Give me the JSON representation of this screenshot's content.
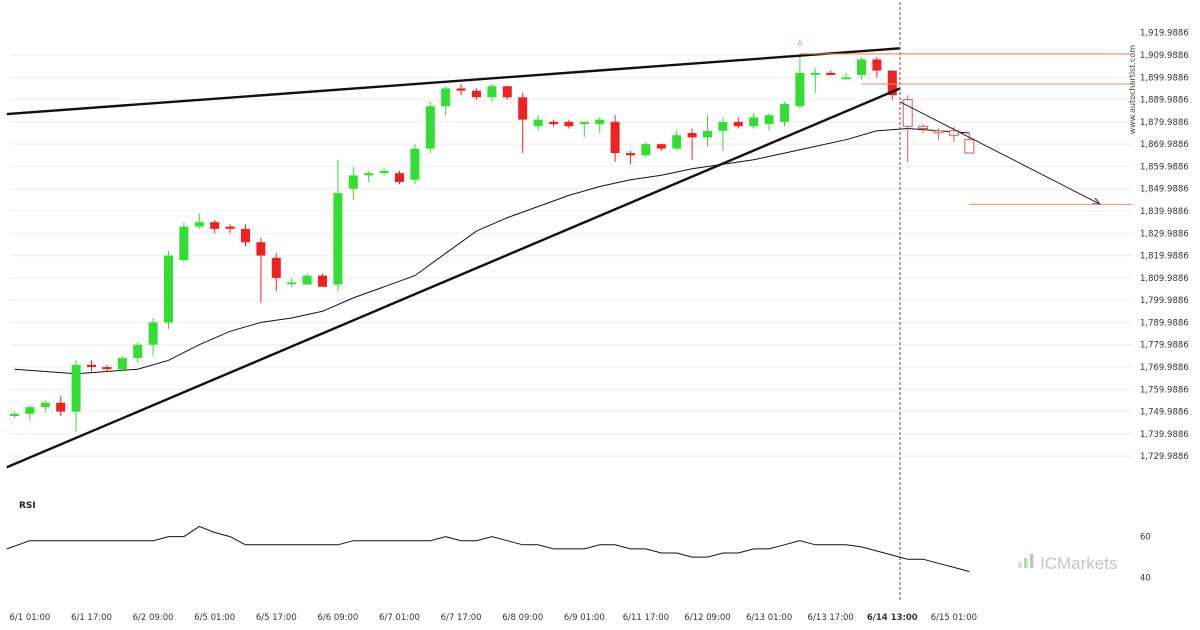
{
  "chart_data": {
    "type": "candlestick",
    "title": "",
    "watermark": "www.autochartist.com",
    "brand": "ICMarkets",
    "y_axis": {
      "side": "right",
      "range": [
        1721.9886,
        1931.9886
      ],
      "ticks": [
        "1,909.9886",
        "1,899.9886",
        "1,889.9886",
        "1,879.9886",
        "1,869.9886",
        "1,859.9886",
        "1,849.9886",
        "1,839.9886",
        "1,829.9886",
        "1,819.9886",
        "1,809.9886",
        "1,799.9886",
        "1,789.9886",
        "1,779.9886",
        "1,769.9886",
        "1,759.9886",
        "1,749.9886",
        "1,739.9886",
        "1,729.9886"
      ],
      "tick_values": [
        1909.9886,
        1899.9886,
        1889.9886,
        1879.9886,
        1869.9886,
        1859.9886,
        1849.9886,
        1839.9886,
        1829.9886,
        1819.9886,
        1809.9886,
        1799.9886,
        1789.9886,
        1779.9886,
        1769.9886,
        1759.9886,
        1749.9886,
        1739.9886,
        1729.9886
      ],
      "top_label": "1,919.9886"
    },
    "x_axis": {
      "labels": [
        {
          "label": "6/1 01:00",
          "index": 1
        },
        {
          "label": "6/1 17:00",
          "index": 5
        },
        {
          "label": "6/2 09:00",
          "index": 9
        },
        {
          "label": "6/5 01:00",
          "index": 13
        },
        {
          "label": "6/5 17:00",
          "index": 17
        },
        {
          "label": "6/6 09:00",
          "index": 21
        },
        {
          "label": "6/7 01:00",
          "index": 25
        },
        {
          "label": "6/7 17:00",
          "index": 29
        },
        {
          "label": "6/8 09:00",
          "index": 33
        },
        {
          "label": "6/9 01:00",
          "index": 37
        },
        {
          "label": "6/11 17:00",
          "index": 41
        },
        {
          "label": "6/12 09:00",
          "index": 45
        },
        {
          "label": "6/13 01:00",
          "index": 49
        },
        {
          "label": "6/13 17:00",
          "index": 53
        },
        {
          "label": "6/14 13:00",
          "index": 57,
          "bold": true
        },
        {
          "label": "6/15 01:00",
          "index": 61
        }
      ]
    },
    "candles": [
      {
        "o": 1748.0,
        "h": 1750.0,
        "l": 1747.0,
        "c": 1749.0
      },
      {
        "o": 1749.0,
        "h": 1753.0,
        "l": 1746.0,
        "c": 1752.0
      },
      {
        "o": 1752.0,
        "h": 1755.0,
        "l": 1750.0,
        "c": 1754.0
      },
      {
        "o": 1754.0,
        "h": 1757.0,
        "l": 1748.0,
        "c": 1750.0
      },
      {
        "o": 1750.0,
        "h": 1773.0,
        "l": 1741.0,
        "c": 1771.0
      },
      {
        "o": 1771.0,
        "h": 1773.0,
        "l": 1768.0,
        "c": 1770.0
      },
      {
        "o": 1770.0,
        "h": 1771.0,
        "l": 1768.0,
        "c": 1769.0
      },
      {
        "o": 1769.0,
        "h": 1775.0,
        "l": 1768.0,
        "c": 1774.0
      },
      {
        "o": 1774.0,
        "h": 1781.0,
        "l": 1772.0,
        "c": 1780.0
      },
      {
        "o": 1780.0,
        "h": 1792.0,
        "l": 1775.0,
        "c": 1790.0
      },
      {
        "o": 1790.0,
        "h": 1822.0,
        "l": 1787.0,
        "c": 1820.0
      },
      {
        "o": 1818.0,
        "h": 1835.0,
        "l": 1817.0,
        "c": 1833.0
      },
      {
        "o": 1833.0,
        "h": 1839.0,
        "l": 1832.0,
        "c": 1835.0
      },
      {
        "o": 1835.0,
        "h": 1836.0,
        "l": 1830.0,
        "c": 1832.0
      },
      {
        "o": 1833.0,
        "h": 1834.0,
        "l": 1830.0,
        "c": 1832.0
      },
      {
        "o": 1832.0,
        "h": 1834.0,
        "l": 1824.0,
        "c": 1826.0
      },
      {
        "o": 1826.0,
        "h": 1828.0,
        "l": 1799.0,
        "c": 1820.0
      },
      {
        "o": 1819.0,
        "h": 1821.0,
        "l": 1804.0,
        "c": 1810.0
      },
      {
        "o": 1808.0,
        "h": 1810.0,
        "l": 1806.0,
        "c": 1808.0
      },
      {
        "o": 1807.0,
        "h": 1812.0,
        "l": 1807.0,
        "c": 1811.0
      },
      {
        "o": 1811.0,
        "h": 1812.0,
        "l": 1806.0,
        "c": 1806.0
      },
      {
        "o": 1807.0,
        "h": 1863.0,
        "l": 1804.0,
        "c": 1848.0
      },
      {
        "o": 1850.0,
        "h": 1860.0,
        "l": 1845.0,
        "c": 1856.0
      },
      {
        "o": 1856.0,
        "h": 1858.0,
        "l": 1853.0,
        "c": 1857.0
      },
      {
        "o": 1857.0,
        "h": 1859.0,
        "l": 1856.0,
        "c": 1858.0
      },
      {
        "o": 1857.0,
        "h": 1858.0,
        "l": 1852.0,
        "c": 1853.0
      },
      {
        "o": 1854.0,
        "h": 1870.0,
        "l": 1852.0,
        "c": 1868.0
      },
      {
        "o": 1868.0,
        "h": 1889.0,
        "l": 1866.0,
        "c": 1887.0
      },
      {
        "o": 1887.0,
        "h": 1896.0,
        "l": 1883.0,
        "c": 1895.0
      },
      {
        "o": 1895.0,
        "h": 1897.0,
        "l": 1892.0,
        "c": 1894.0
      },
      {
        "o": 1894.0,
        "h": 1895.0,
        "l": 1890.0,
        "c": 1891.0
      },
      {
        "o": 1891.0,
        "h": 1897.0,
        "l": 1889.0,
        "c": 1896.0
      },
      {
        "o": 1896.0,
        "h": 1896.0,
        "l": 1890.0,
        "c": 1891.0
      },
      {
        "o": 1891.0,
        "h": 1893.0,
        "l": 1866.0,
        "c": 1881.0
      },
      {
        "o": 1878.0,
        "h": 1883.0,
        "l": 1876.0,
        "c": 1881.0
      },
      {
        "o": 1880.0,
        "h": 1881.0,
        "l": 1878.0,
        "c": 1879.0
      },
      {
        "o": 1880.0,
        "h": 1881.0,
        "l": 1877.0,
        "c": 1878.0
      },
      {
        "o": 1879.0,
        "h": 1880.0,
        "l": 1873.0,
        "c": 1880.0
      },
      {
        "o": 1879.0,
        "h": 1882.0,
        "l": 1875.0,
        "c": 1881.0
      },
      {
        "o": 1880.0,
        "h": 1883.0,
        "l": 1862.0,
        "c": 1866.0
      },
      {
        "o": 1866.0,
        "h": 1867.0,
        "l": 1861.0,
        "c": 1865.0
      },
      {
        "o": 1865.0,
        "h": 1871.0,
        "l": 1864.0,
        "c": 1870.0
      },
      {
        "o": 1870.0,
        "h": 1870.0,
        "l": 1867.0,
        "c": 1868.0
      },
      {
        "o": 1868.0,
        "h": 1876.0,
        "l": 1867.0,
        "c": 1874.0
      },
      {
        "o": 1875.0,
        "h": 1877.0,
        "l": 1863.0,
        "c": 1873.0
      },
      {
        "o": 1873.0,
        "h": 1883.0,
        "l": 1869.0,
        "c": 1876.0
      },
      {
        "o": 1876.0,
        "h": 1882.0,
        "l": 1867.0,
        "c": 1880.0
      },
      {
        "o": 1880.0,
        "h": 1882.0,
        "l": 1877.0,
        "c": 1878.0
      },
      {
        "o": 1878.0,
        "h": 1884.0,
        "l": 1877.0,
        "c": 1882.0
      },
      {
        "o": 1879.0,
        "h": 1884.0,
        "l": 1876.0,
        "c": 1883.0
      },
      {
        "o": 1880.0,
        "h": 1889.0,
        "l": 1878.0,
        "c": 1888.0
      },
      {
        "o": 1887.0,
        "h": 1910.0,
        "l": 1886.0,
        "c": 1902.0
      },
      {
        "o": 1902.0,
        "h": 1904.0,
        "l": 1893.0,
        "c": 1902.0
      },
      {
        "o": 1902.0,
        "h": 1903.0,
        "l": 1901.0,
        "c": 1901.0
      },
      {
        "o": 1900.0,
        "h": 1902.0,
        "l": 1899.0,
        "c": 1900.0
      },
      {
        "o": 1901.0,
        "h": 1909.0,
        "l": 1899.0,
        "c": 1908.0
      },
      {
        "o": 1908.0,
        "h": 1909.0,
        "l": 1900.0,
        "c": 1903.0
      },
      {
        "o": 1903.0,
        "h": 1903.0,
        "l": 1890.0,
        "c": 1892.0
      },
      {
        "o": 1890.0,
        "h": 1892.0,
        "l": 1862.0,
        "c": 1878.0
      },
      {
        "o": 1877.0,
        "h": 1879.0,
        "l": 1875.0,
        "c": 1878.0
      },
      {
        "o": 1876.0,
        "h": 1877.0,
        "l": 1872.0,
        "c": 1876.0
      },
      {
        "o": 1874.0,
        "h": 1878.0,
        "l": 1871.0,
        "c": 1876.0
      },
      {
        "o": 1872.0,
        "h": 1875.0,
        "l": 1866.0,
        "c": 1866.0
      }
    ],
    "moving_average": [
      {
        "i": 0,
        "v": 1769.0
      },
      {
        "i": 2,
        "v": 1768.0
      },
      {
        "i": 4,
        "v": 1767.0
      },
      {
        "i": 6,
        "v": 1768.0
      },
      {
        "i": 8,
        "v": 1769.0
      },
      {
        "i": 10,
        "v": 1773.0
      },
      {
        "i": 12,
        "v": 1780.0
      },
      {
        "i": 14,
        "v": 1786.0
      },
      {
        "i": 16,
        "v": 1790.0
      },
      {
        "i": 18,
        "v": 1792.0
      },
      {
        "i": 20,
        "v": 1795.0
      },
      {
        "i": 22,
        "v": 1801.0
      },
      {
        "i": 24,
        "v": 1806.0
      },
      {
        "i": 26,
        "v": 1811.0
      },
      {
        "i": 28,
        "v": 1821.0
      },
      {
        "i": 30,
        "v": 1831.0
      },
      {
        "i": 32,
        "v": 1837.0
      },
      {
        "i": 34,
        "v": 1842.0
      },
      {
        "i": 36,
        "v": 1847.0
      },
      {
        "i": 38,
        "v": 1851.0
      },
      {
        "i": 40,
        "v": 1854.0
      },
      {
        "i": 42,
        "v": 1856.0
      },
      {
        "i": 44,
        "v": 1859.0
      },
      {
        "i": 46,
        "v": 1861.0
      },
      {
        "i": 48,
        "v": 1863.0
      },
      {
        "i": 50,
        "v": 1866.0
      },
      {
        "i": 52,
        "v": 1869.0
      },
      {
        "i": 54,
        "v": 1872.0
      },
      {
        "i": 56,
        "v": 1876.0
      },
      {
        "i": 58,
        "v": 1877.0
      },
      {
        "i": 60,
        "v": 1876.0
      },
      {
        "i": 62,
        "v": 1875.0
      }
    ],
    "trend_lines": [
      {
        "name": "resistance",
        "from": {
          "i": -0.5,
          "v": 1883.5
        },
        "to": {
          "i": 57.5,
          "v": 1913.0
        }
      },
      {
        "name": "support",
        "from": {
          "i": -0.5,
          "v": 1725.0
        },
        "to": {
          "i": 57.5,
          "v": 1895.0
        }
      }
    ],
    "projection_arrow": {
      "from": {
        "i": 57.5,
        "v": 1889.0
      },
      "to": {
        "i": 70.5,
        "v": 1843.0
      }
    },
    "levels": [
      {
        "name": "level-1",
        "v": 1910.5,
        "from_i": 51,
        "to_i": 76
      },
      {
        "name": "level-2",
        "v": 1897.0,
        "from_i": 55,
        "to_i": 76
      },
      {
        "name": "target",
        "v": 1843.0,
        "from_i": 62,
        "to_i": 76
      }
    ],
    "pattern_label": "A",
    "pattern_label_point": {
      "i": 51,
      "v": 1914.0
    },
    "current_time_index": 57,
    "rsi": {
      "title": "RSI",
      "ticks": [
        "60",
        "40"
      ],
      "tick_values": [
        60,
        40
      ],
      "range": [
        33,
        72
      ],
      "values": [
        {
          "i": -0.5,
          "v": 54
        },
        {
          "i": 1,
          "v": 58
        },
        {
          "i": 3,
          "v": 58
        },
        {
          "i": 5,
          "v": 58
        },
        {
          "i": 7,
          "v": 58
        },
        {
          "i": 9,
          "v": 58
        },
        {
          "i": 10,
          "v": 60
        },
        {
          "i": 11,
          "v": 60
        },
        {
          "i": 12,
          "v": 65
        },
        {
          "i": 13,
          "v": 62
        },
        {
          "i": 14,
          "v": 60
        },
        {
          "i": 15,
          "v": 56
        },
        {
          "i": 17,
          "v": 56
        },
        {
          "i": 19,
          "v": 56
        },
        {
          "i": 21,
          "v": 56
        },
        {
          "i": 22,
          "v": 58
        },
        {
          "i": 24,
          "v": 58
        },
        {
          "i": 26,
          "v": 58
        },
        {
          "i": 27,
          "v": 58
        },
        {
          "i": 28,
          "v": 60
        },
        {
          "i": 29,
          "v": 58
        },
        {
          "i": 30,
          "v": 58
        },
        {
          "i": 31,
          "v": 60
        },
        {
          "i": 32,
          "v": 58
        },
        {
          "i": 33,
          "v": 56
        },
        {
          "i": 34,
          "v": 56
        },
        {
          "i": 35,
          "v": 54
        },
        {
          "i": 36,
          "v": 54
        },
        {
          "i": 37,
          "v": 54
        },
        {
          "i": 38,
          "v": 56
        },
        {
          "i": 39,
          "v": 56
        },
        {
          "i": 40,
          "v": 54
        },
        {
          "i": 41,
          "v": 54
        },
        {
          "i": 42,
          "v": 52
        },
        {
          "i": 43,
          "v": 52
        },
        {
          "i": 44,
          "v": 50
        },
        {
          "i": 45,
          "v": 50
        },
        {
          "i": 46,
          "v": 52
        },
        {
          "i": 47,
          "v": 52
        },
        {
          "i": 48,
          "v": 54
        },
        {
          "i": 49,
          "v": 54
        },
        {
          "i": 50,
          "v": 56
        },
        {
          "i": 51,
          "v": 58
        },
        {
          "i": 52,
          "v": 56
        },
        {
          "i": 53,
          "v": 56
        },
        {
          "i": 54,
          "v": 56
        },
        {
          "i": 55,
          "v": 55
        },
        {
          "i": 56,
          "v": 53
        },
        {
          "i": 57,
          "v": 51
        },
        {
          "i": 58,
          "v": 49
        },
        {
          "i": 59,
          "v": 49
        },
        {
          "i": 60,
          "v": 47
        },
        {
          "i": 61,
          "v": 45
        },
        {
          "i": 62,
          "v": 43
        }
      ]
    },
    "colors": {
      "up": "#33dd33",
      "down": "#ee2222",
      "trend": "#111111",
      "moving_average": "#111111",
      "level": "#f08a5d",
      "projection": "#222222",
      "grid": "#eeeeee",
      "rsi_line": "#111111",
      "hollow_stroke": "#e05555",
      "brand_dots": [
        "#d9d9d9",
        "#a6e3a6",
        "#c4c4c4"
      ]
    }
  }
}
